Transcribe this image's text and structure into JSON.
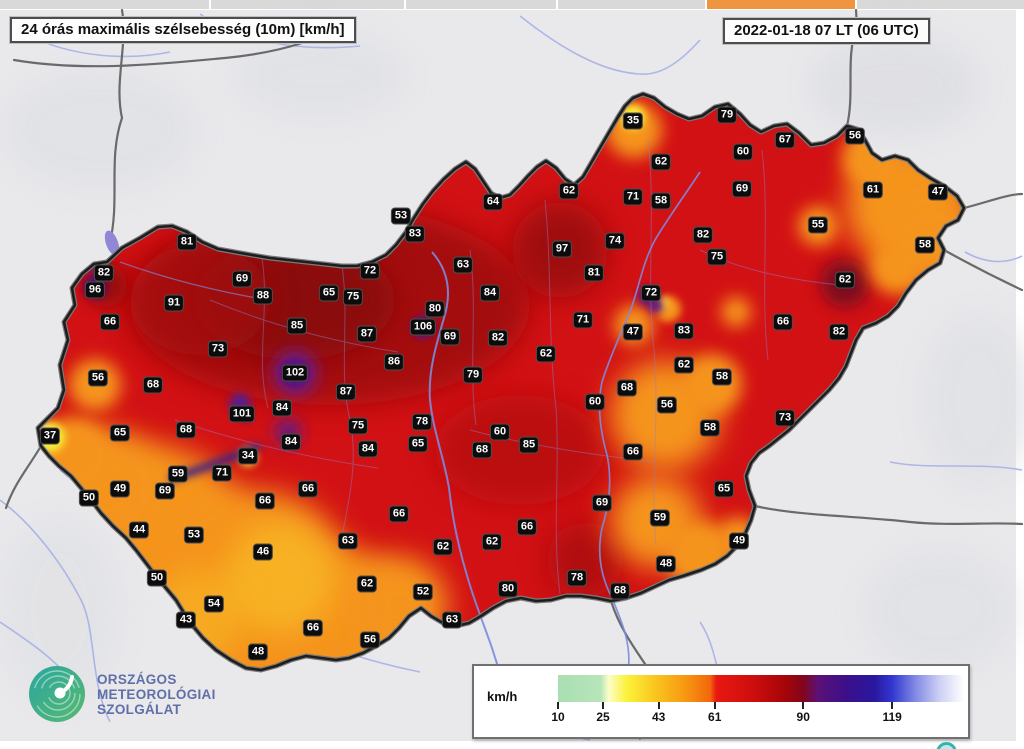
{
  "header": {
    "title": "24 órás maximális szélsebesség (10m) [km/h]",
    "datetime": "2022-01-18 07 LT (06 UTC)"
  },
  "top_strip": {
    "segments": [
      [
        0,
        209
      ],
      [
        211,
        193
      ],
      [
        406,
        150
      ],
      [
        558,
        147
      ],
      [
        707,
        148
      ],
      [
        857,
        167
      ]
    ],
    "highlight_index": 4,
    "highlight_color": "#f0953f",
    "segment_color": "#d9d9d9"
  },
  "legend": {
    "unit": "km/h",
    "ticks": [
      {
        "label": "10",
        "pct": 0
      },
      {
        "label": "25",
        "pct": 11.1
      },
      {
        "label": "43",
        "pct": 24.8
      },
      {
        "label": "61",
        "pct": 38.6
      },
      {
        "label": "90",
        "pct": 60.4
      },
      {
        "label": "119",
        "pct": 82.3
      }
    ],
    "gradient_stops": [
      {
        "pct": 0,
        "color": "#a9dfb2"
      },
      {
        "pct": 10.5,
        "color": "#b7e5ba"
      },
      {
        "pct": 12.5,
        "color": "#fdfdc8"
      },
      {
        "pct": 17,
        "color": "#fbf23a"
      },
      {
        "pct": 24.8,
        "color": "#f9c01c"
      },
      {
        "pct": 31,
        "color": "#f79a12"
      },
      {
        "pct": 37.5,
        "color": "#f2670c"
      },
      {
        "pct": 39,
        "color": "#e81911"
      },
      {
        "pct": 48,
        "color": "#cf0d0e"
      },
      {
        "pct": 56,
        "color": "#a40509"
      },
      {
        "pct": 60.4,
        "color": "#83051c"
      },
      {
        "pct": 64,
        "color": "#5c1176"
      },
      {
        "pct": 71,
        "color": "#3b0f8a"
      },
      {
        "pct": 78,
        "color": "#2a17a0"
      },
      {
        "pct": 82.3,
        "color": "#3137d0"
      },
      {
        "pct": 88,
        "color": "#8289e4"
      },
      {
        "pct": 94,
        "color": "#cdd0f4"
      },
      {
        "pct": 100,
        "color": "#ffffff"
      }
    ]
  },
  "logo": {
    "lines": [
      "ORSZÁGOS",
      "METEOROLÓGIAI",
      "SZOLGÁLAT"
    ],
    "text_color": "#5f6fa8",
    "icon_color": "#2aa7a0"
  },
  "colors": {
    "map_base_red": "#d21114",
    "orange": "#f5941d",
    "yellow": "#f7ef35",
    "purple": "#5a1585",
    "outside_gray": "#e9e9ec"
  },
  "map": {
    "stations": [
      [
        81,
        187,
        242
      ],
      [
        82,
        104,
        273
      ],
      [
        96,
        95,
        290
      ],
      [
        69,
        242,
        279
      ],
      [
        88,
        263,
        296
      ],
      [
        91,
        174,
        303
      ],
      [
        66,
        110,
        322
      ],
      [
        85,
        297,
        326
      ],
      [
        73,
        218,
        349
      ],
      [
        56,
        98,
        378
      ],
      [
        68,
        153,
        385
      ],
      [
        65,
        329,
        293
      ],
      [
        75,
        353,
        297
      ],
      [
        72,
        370,
        271
      ],
      [
        53,
        401,
        216
      ],
      [
        83,
        415,
        234
      ],
      [
        64,
        493,
        202
      ],
      [
        63,
        463,
        265
      ],
      [
        84,
        490,
        293
      ],
      [
        80,
        435,
        309
      ],
      [
        106,
        423,
        327
      ],
      [
        87,
        367,
        334
      ],
      [
        86,
        394,
        362
      ],
      [
        69,
        450,
        337
      ],
      [
        82,
        498,
        338
      ],
      [
        62,
        546,
        354
      ],
      [
        79,
        473,
        375
      ],
      [
        97,
        562,
        249
      ],
      [
        62,
        569,
        191
      ],
      [
        81,
        594,
        273
      ],
      [
        71,
        583,
        320
      ],
      [
        35,
        633,
        121
      ],
      [
        79,
        727,
        115
      ],
      [
        62,
        661,
        162
      ],
      [
        60,
        743,
        152
      ],
      [
        67,
        785,
        140
      ],
      [
        71,
        633,
        197
      ],
      [
        58,
        661,
        201
      ],
      [
        69,
        742,
        189
      ],
      [
        74,
        615,
        241
      ],
      [
        82,
        703,
        235
      ],
      [
        75,
        717,
        257
      ],
      [
        55,
        818,
        225
      ],
      [
        56,
        855,
        136
      ],
      [
        61,
        873,
        190
      ],
      [
        47,
        938,
        192
      ],
      [
        58,
        925,
        245
      ],
      [
        62,
        845,
        280
      ],
      [
        72,
        651,
        293
      ],
      [
        47,
        633,
        332
      ],
      [
        83,
        684,
        331
      ],
      [
        66,
        783,
        322
      ],
      [
        82,
        839,
        332
      ],
      [
        62,
        684,
        365
      ],
      [
        58,
        722,
        377
      ],
      [
        68,
        627,
        388
      ],
      [
        56,
        667,
        405
      ],
      [
        73,
        785,
        418
      ],
      [
        58,
        710,
        428
      ],
      [
        66,
        633,
        452
      ],
      [
        60,
        595,
        402
      ],
      [
        68,
        482,
        450
      ],
      [
        85,
        529,
        445
      ],
      [
        60,
        500,
        432
      ],
      [
        65,
        418,
        444
      ],
      [
        78,
        422,
        422
      ],
      [
        102,
        295,
        373
      ],
      [
        101,
        242,
        414
      ],
      [
        84,
        282,
        408
      ],
      [
        87,
        346,
        392
      ],
      [
        75,
        358,
        426
      ],
      [
        84,
        368,
        449
      ],
      [
        84,
        291,
        442
      ],
      [
        34,
        248,
        456
      ],
      [
        59,
        178,
        474
      ],
      [
        71,
        222,
        473
      ],
      [
        68,
        186,
        430
      ],
      [
        65,
        120,
        433
      ],
      [
        37,
        50,
        436
      ],
      [
        49,
        120,
        489
      ],
      [
        69,
        165,
        491
      ],
      [
        50,
        89,
        498
      ],
      [
        44,
        139,
        530
      ],
      [
        53,
        194,
        535
      ],
      [
        66,
        265,
        501
      ],
      [
        66,
        308,
        489
      ],
      [
        46,
        263,
        552
      ],
      [
        50,
        157,
        578
      ],
      [
        54,
        214,
        604
      ],
      [
        43,
        186,
        620
      ],
      [
        66,
        313,
        628
      ],
      [
        56,
        370,
        640
      ],
      [
        48,
        258,
        652
      ],
      [
        62,
        367,
        584
      ],
      [
        52,
        423,
        592
      ],
      [
        63,
        348,
        541
      ],
      [
        66,
        399,
        514
      ],
      [
        62,
        443,
        547
      ],
      [
        62,
        492,
        542
      ],
      [
        66,
        527,
        527
      ],
      [
        69,
        602,
        503
      ],
      [
        59,
        660,
        518
      ],
      [
        49,
        739,
        541
      ],
      [
        65,
        724,
        489
      ],
      [
        48,
        666,
        564
      ],
      [
        78,
        577,
        578
      ],
      [
        80,
        508,
        589
      ],
      [
        68,
        620,
        591
      ],
      [
        63,
        452,
        620
      ]
    ]
  }
}
